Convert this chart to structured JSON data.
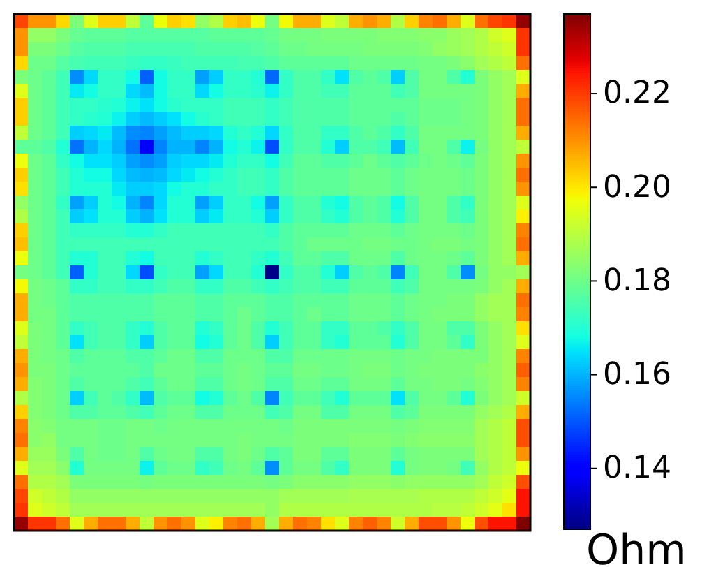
{
  "chart_data": {
    "type": "heatmap",
    "clabel": "Ohm",
    "clim": [
      0.127,
      0.237
    ],
    "cticks": [
      0.14,
      0.16,
      0.18,
      {
        "value": 0.2,
        "label": "0.20"
      },
      0.22
    ],
    "categories": [
      null,
      null,
      null,
      null,
      null,
      null,
      null,
      null,
      null,
      null,
      null,
      null,
      null,
      null,
      null,
      null,
      null,
      null,
      null,
      null,
      null,
      null,
      null,
      null,
      null,
      null,
      null,
      null,
      null,
      null,
      null,
      null,
      null,
      null,
      null,
      null,
      null
    ],
    "y_categories": [
      null,
      null,
      null,
      null,
      null,
      null,
      null,
      null,
      null,
      null,
      null,
      null,
      null,
      null,
      null,
      null,
      null,
      null,
      null,
      null,
      null,
      null,
      null,
      null,
      null,
      null,
      null,
      null,
      null,
      null,
      null,
      null,
      null,
      null,
      null,
      null,
      null
    ],
    "cells": [
      [
        0.219,
        0.21,
        0.21,
        0.202,
        0.182,
        0.195,
        0.203,
        0.203,
        0.191,
        0.178,
        0.197,
        0.203,
        0.201,
        0.185,
        0.189,
        0.203,
        0.205,
        0.197,
        0.181,
        0.198,
        0.207,
        0.207,
        0.195,
        0.191,
        0.207,
        0.21,
        0.207,
        0.189,
        0.203,
        0.212,
        0.214,
        0.207,
        0.195,
        0.214,
        0.219,
        0.221,
        0.235
      ],
      [
        0.21,
        0.185,
        0.185,
        0.182,
        0.179,
        0.178,
        0.178,
        0.178,
        0.177,
        0.177,
        0.177,
        0.177,
        0.177,
        0.177,
        0.178,
        0.178,
        0.178,
        0.178,
        0.179,
        0.181,
        0.181,
        0.181,
        0.182,
        0.182,
        0.182,
        0.182,
        0.183,
        0.183,
        0.183,
        0.184,
        0.184,
        0.186,
        0.187,
        0.189,
        0.193,
        0.195,
        0.221
      ],
      [
        0.21,
        0.182,
        0.182,
        0.18,
        0.177,
        0.176,
        0.176,
        0.176,
        0.175,
        0.175,
        0.175,
        0.175,
        0.175,
        0.176,
        0.176,
        0.176,
        0.176,
        0.177,
        0.178,
        0.18,
        0.18,
        0.181,
        0.181,
        0.181,
        0.181,
        0.182,
        0.182,
        0.182,
        0.182,
        0.183,
        0.185,
        0.186,
        0.187,
        0.189,
        0.191,
        0.193,
        0.221
      ],
      [
        0.202,
        0.18,
        0.18,
        0.177,
        0.175,
        0.174,
        0.174,
        0.174,
        0.173,
        0.172,
        0.172,
        0.173,
        0.174,
        0.174,
        0.174,
        0.174,
        0.175,
        0.175,
        0.176,
        0.178,
        0.178,
        0.178,
        0.178,
        0.178,
        0.18,
        0.18,
        0.18,
        0.18,
        0.18,
        0.181,
        0.181,
        0.182,
        0.184,
        0.187,
        0.189,
        0.191,
        0.214
      ],
      [
        0.182,
        0.18,
        0.178,
        0.174,
        0.156,
        0.164,
        0.172,
        0.172,
        0.168,
        0.151,
        0.168,
        0.172,
        0.172,
        0.158,
        0.163,
        0.172,
        0.172,
        0.17,
        0.152,
        0.172,
        0.176,
        0.176,
        0.172,
        0.165,
        0.176,
        0.178,
        0.176,
        0.163,
        0.176,
        0.181,
        0.181,
        0.176,
        0.17,
        0.182,
        0.185,
        0.187,
        0.195
      ],
      [
        0.195,
        0.18,
        0.178,
        0.174,
        0.166,
        0.168,
        0.172,
        0.172,
        0.164,
        0.161,
        0.168,
        0.172,
        0.172,
        0.164,
        0.168,
        0.172,
        0.172,
        0.171,
        0.167,
        0.172,
        0.176,
        0.176,
        0.174,
        0.174,
        0.178,
        0.178,
        0.178,
        0.174,
        0.176,
        0.181,
        0.181,
        0.181,
        0.181,
        0.182,
        0.185,
        0.187,
        0.207
      ],
      [
        0.203,
        0.18,
        0.178,
        0.174,
        0.172,
        0.172,
        0.171,
        0.17,
        0.167,
        0.165,
        0.168,
        0.171,
        0.172,
        0.172,
        0.172,
        0.174,
        0.174,
        0.174,
        0.172,
        0.174,
        0.176,
        0.176,
        0.176,
        0.176,
        0.178,
        0.178,
        0.178,
        0.178,
        0.178,
        0.18,
        0.18,
        0.18,
        0.181,
        0.182,
        0.185,
        0.187,
        0.214
      ],
      [
        0.203,
        0.18,
        0.178,
        0.174,
        0.172,
        0.171,
        0.17,
        0.167,
        0.163,
        0.161,
        0.163,
        0.165,
        0.168,
        0.171,
        0.172,
        0.174,
        0.174,
        0.174,
        0.172,
        0.174,
        0.176,
        0.176,
        0.176,
        0.176,
        0.178,
        0.178,
        0.178,
        0.176,
        0.178,
        0.18,
        0.18,
        0.18,
        0.181,
        0.182,
        0.185,
        0.187,
        0.214
      ],
      [
        0.191,
        0.18,
        0.178,
        0.174,
        0.163,
        0.164,
        0.166,
        0.161,
        0.156,
        0.155,
        0.158,
        0.161,
        0.163,
        0.163,
        0.164,
        0.17,
        0.172,
        0.17,
        0.164,
        0.172,
        0.176,
        0.176,
        0.172,
        0.172,
        0.176,
        0.178,
        0.176,
        0.172,
        0.176,
        0.181,
        0.181,
        0.181,
        0.181,
        0.182,
        0.185,
        0.187,
        0.207
      ],
      [
        0.178,
        0.178,
        0.176,
        0.17,
        0.153,
        0.16,
        0.164,
        0.16,
        0.153,
        0.14,
        0.155,
        0.16,
        0.16,
        0.155,
        0.16,
        0.168,
        0.17,
        0.167,
        0.149,
        0.172,
        0.176,
        0.176,
        0.17,
        0.163,
        0.176,
        0.176,
        0.174,
        0.161,
        0.174,
        0.181,
        0.181,
        0.176,
        0.167,
        0.181,
        0.185,
        0.187,
        0.191
      ],
      [
        0.197,
        0.18,
        0.178,
        0.172,
        0.168,
        0.165,
        0.165,
        0.163,
        0.158,
        0.156,
        0.158,
        0.163,
        0.164,
        0.164,
        0.166,
        0.17,
        0.172,
        0.172,
        0.168,
        0.174,
        0.178,
        0.178,
        0.176,
        0.176,
        0.178,
        0.18,
        0.178,
        0.176,
        0.178,
        0.18,
        0.181,
        0.18,
        0.178,
        0.182,
        0.185,
        0.187,
        0.21
      ],
      [
        0.203,
        0.18,
        0.178,
        0.174,
        0.17,
        0.168,
        0.168,
        0.164,
        0.161,
        0.16,
        0.161,
        0.164,
        0.166,
        0.168,
        0.17,
        0.172,
        0.174,
        0.174,
        0.172,
        0.176,
        0.178,
        0.178,
        0.178,
        0.178,
        0.18,
        0.18,
        0.18,
        0.178,
        0.18,
        0.181,
        0.181,
        0.181,
        0.18,
        0.182,
        0.185,
        0.187,
        0.214
      ],
      [
        0.201,
        0.18,
        0.178,
        0.174,
        0.17,
        0.17,
        0.17,
        0.166,
        0.163,
        0.163,
        0.164,
        0.168,
        0.17,
        0.17,
        0.172,
        0.172,
        0.174,
        0.174,
        0.172,
        0.176,
        0.178,
        0.178,
        0.178,
        0.178,
        0.18,
        0.18,
        0.18,
        0.178,
        0.18,
        0.181,
        0.181,
        0.181,
        0.18,
        0.182,
        0.185,
        0.187,
        0.21
      ],
      [
        0.185,
        0.18,
        0.178,
        0.172,
        0.158,
        0.163,
        0.17,
        0.168,
        0.16,
        0.155,
        0.164,
        0.17,
        0.17,
        0.158,
        0.163,
        0.172,
        0.172,
        0.168,
        0.158,
        0.172,
        0.176,
        0.176,
        0.17,
        0.168,
        0.176,
        0.178,
        0.176,
        0.168,
        0.176,
        0.181,
        0.181,
        0.176,
        0.172,
        0.182,
        0.185,
        0.187,
        0.195
      ],
      [
        0.189,
        0.18,
        0.178,
        0.174,
        0.163,
        0.165,
        0.17,
        0.17,
        0.163,
        0.16,
        0.165,
        0.17,
        0.17,
        0.163,
        0.166,
        0.172,
        0.172,
        0.17,
        0.163,
        0.172,
        0.176,
        0.176,
        0.172,
        0.17,
        0.176,
        0.178,
        0.176,
        0.17,
        0.176,
        0.181,
        0.181,
        0.176,
        0.174,
        0.182,
        0.185,
        0.187,
        0.199
      ],
      [
        0.203,
        0.18,
        0.178,
        0.174,
        0.172,
        0.172,
        0.172,
        0.172,
        0.17,
        0.17,
        0.172,
        0.174,
        0.174,
        0.174,
        0.174,
        0.174,
        0.174,
        0.174,
        0.172,
        0.176,
        0.178,
        0.178,
        0.178,
        0.178,
        0.18,
        0.18,
        0.18,
        0.178,
        0.18,
        0.181,
        0.181,
        0.181,
        0.18,
        0.182,
        0.185,
        0.187,
        0.212
      ],
      [
        0.205,
        0.18,
        0.178,
        0.174,
        0.174,
        0.174,
        0.174,
        0.174,
        0.174,
        0.174,
        0.174,
        0.174,
        0.174,
        0.174,
        0.174,
        0.174,
        0.174,
        0.174,
        0.174,
        0.176,
        0.178,
        0.18,
        0.18,
        0.18,
        0.18,
        0.181,
        0.181,
        0.18,
        0.18,
        0.181,
        0.182,
        0.182,
        0.181,
        0.182,
        0.185,
        0.187,
        0.214
      ],
      [
        0.197,
        0.18,
        0.178,
        0.174,
        0.17,
        0.17,
        0.174,
        0.174,
        0.17,
        0.168,
        0.174,
        0.174,
        0.174,
        0.17,
        0.172,
        0.174,
        0.174,
        0.172,
        0.17,
        0.174,
        0.178,
        0.178,
        0.176,
        0.176,
        0.18,
        0.18,
        0.18,
        0.176,
        0.18,
        0.181,
        0.181,
        0.18,
        0.178,
        0.182,
        0.185,
        0.187,
        0.207
      ],
      [
        0.181,
        0.18,
        0.178,
        0.174,
        0.151,
        0.17,
        0.174,
        0.174,
        0.164,
        0.149,
        0.172,
        0.174,
        0.174,
        0.158,
        0.164,
        0.174,
        0.174,
        0.17,
        0.128,
        0.172,
        0.176,
        0.176,
        0.17,
        0.163,
        0.176,
        0.178,
        0.176,
        0.155,
        0.174,
        0.181,
        0.181,
        0.176,
        0.156,
        0.181,
        0.185,
        0.185,
        0.187
      ],
      [
        0.198,
        0.181,
        0.18,
        0.178,
        0.172,
        0.172,
        0.174,
        0.174,
        0.172,
        0.172,
        0.174,
        0.176,
        0.176,
        0.172,
        0.172,
        0.176,
        0.176,
        0.174,
        0.172,
        0.174,
        0.176,
        0.176,
        0.174,
        0.174,
        0.178,
        0.178,
        0.178,
        0.174,
        0.176,
        0.181,
        0.181,
        0.181,
        0.181,
        0.182,
        0.185,
        0.187,
        0.207
      ],
      [
        0.207,
        0.181,
        0.18,
        0.178,
        0.176,
        0.176,
        0.176,
        0.176,
        0.176,
        0.176,
        0.178,
        0.178,
        0.178,
        0.176,
        0.176,
        0.178,
        0.178,
        0.178,
        0.176,
        0.176,
        0.178,
        0.178,
        0.178,
        0.178,
        0.18,
        0.18,
        0.18,
        0.178,
        0.18,
        0.181,
        0.181,
        0.182,
        0.182,
        0.185,
        0.187,
        0.187,
        0.214
      ],
      [
        0.207,
        0.181,
        0.181,
        0.178,
        0.176,
        0.176,
        0.176,
        0.176,
        0.176,
        0.176,
        0.178,
        0.178,
        0.178,
        0.176,
        0.176,
        0.178,
        0.18,
        0.178,
        0.176,
        0.176,
        0.178,
        0.18,
        0.178,
        0.178,
        0.18,
        0.18,
        0.18,
        0.178,
        0.18,
        0.181,
        0.182,
        0.182,
        0.182,
        0.185,
        0.187,
        0.187,
        0.212
      ],
      [
        0.195,
        0.182,
        0.181,
        0.178,
        0.172,
        0.174,
        0.176,
        0.176,
        0.172,
        0.17,
        0.176,
        0.178,
        0.178,
        0.17,
        0.172,
        0.178,
        0.18,
        0.176,
        0.17,
        0.174,
        0.178,
        0.178,
        0.172,
        0.172,
        0.178,
        0.178,
        0.176,
        0.172,
        0.176,
        0.181,
        0.181,
        0.176,
        0.176,
        0.182,
        0.185,
        0.187,
        0.201
      ],
      [
        0.191,
        0.182,
        0.181,
        0.178,
        0.165,
        0.174,
        0.176,
        0.176,
        0.172,
        0.163,
        0.176,
        0.178,
        0.178,
        0.168,
        0.17,
        0.178,
        0.18,
        0.176,
        0.163,
        0.174,
        0.178,
        0.178,
        0.172,
        0.17,
        0.178,
        0.178,
        0.178,
        0.17,
        0.176,
        0.181,
        0.181,
        0.178,
        0.172,
        0.182,
        0.185,
        0.187,
        0.195
      ],
      [
        0.207,
        0.182,
        0.181,
        0.18,
        0.176,
        0.178,
        0.178,
        0.178,
        0.176,
        0.176,
        0.178,
        0.18,
        0.18,
        0.176,
        0.176,
        0.18,
        0.18,
        0.18,
        0.176,
        0.176,
        0.18,
        0.18,
        0.18,
        0.18,
        0.181,
        0.181,
        0.181,
        0.18,
        0.181,
        0.181,
        0.182,
        0.182,
        0.182,
        0.182,
        0.185,
        0.187,
        0.212
      ],
      [
        0.21,
        0.182,
        0.182,
        0.18,
        0.178,
        0.178,
        0.178,
        0.178,
        0.178,
        0.176,
        0.18,
        0.18,
        0.18,
        0.178,
        0.178,
        0.18,
        0.181,
        0.18,
        0.178,
        0.178,
        0.181,
        0.181,
        0.18,
        0.18,
        0.181,
        0.182,
        0.182,
        0.18,
        0.181,
        0.182,
        0.182,
        0.182,
        0.182,
        0.184,
        0.185,
        0.187,
        0.216
      ],
      [
        0.207,
        0.183,
        0.182,
        0.18,
        0.176,
        0.178,
        0.178,
        0.178,
        0.176,
        0.174,
        0.178,
        0.18,
        0.18,
        0.176,
        0.176,
        0.18,
        0.181,
        0.18,
        0.176,
        0.176,
        0.18,
        0.18,
        0.178,
        0.178,
        0.181,
        0.181,
        0.181,
        0.178,
        0.181,
        0.181,
        0.182,
        0.182,
        0.181,
        0.183,
        0.185,
        0.187,
        0.212
      ],
      [
        0.189,
        0.183,
        0.182,
        0.18,
        0.163,
        0.174,
        0.178,
        0.176,
        0.172,
        0.161,
        0.176,
        0.178,
        0.178,
        0.168,
        0.17,
        0.178,
        0.18,
        0.176,
        0.155,
        0.174,
        0.178,
        0.178,
        0.174,
        0.17,
        0.178,
        0.178,
        0.178,
        0.165,
        0.176,
        0.181,
        0.181,
        0.178,
        0.17,
        0.182,
        0.185,
        0.187,
        0.193
      ],
      [
        0.203,
        0.183,
        0.182,
        0.18,
        0.176,
        0.176,
        0.178,
        0.178,
        0.176,
        0.174,
        0.178,
        0.18,
        0.18,
        0.176,
        0.176,
        0.18,
        0.18,
        0.18,
        0.174,
        0.176,
        0.181,
        0.181,
        0.176,
        0.176,
        0.181,
        0.181,
        0.181,
        0.176,
        0.178,
        0.182,
        0.182,
        0.182,
        0.182,
        0.185,
        0.187,
        0.189,
        0.207
      ],
      [
        0.212,
        0.184,
        0.183,
        0.181,
        0.181,
        0.181,
        0.18,
        0.18,
        0.181,
        0.181,
        0.18,
        0.181,
        0.181,
        0.181,
        0.181,
        0.181,
        0.181,
        0.181,
        0.181,
        0.18,
        0.182,
        0.182,
        0.182,
        0.182,
        0.182,
        0.182,
        0.182,
        0.181,
        0.182,
        0.183,
        0.183,
        0.183,
        0.183,
        0.187,
        0.189,
        0.191,
        0.218
      ],
      [
        0.214,
        0.184,
        0.185,
        0.181,
        0.181,
        0.181,
        0.18,
        0.18,
        0.181,
        0.181,
        0.181,
        0.181,
        0.181,
        0.181,
        0.181,
        0.181,
        0.182,
        0.181,
        0.181,
        0.181,
        0.182,
        0.182,
        0.182,
        0.182,
        0.183,
        0.183,
        0.183,
        0.182,
        0.183,
        0.184,
        0.184,
        0.184,
        0.184,
        0.187,
        0.189,
        0.191,
        0.218
      ],
      [
        0.207,
        0.186,
        0.186,
        0.182,
        0.176,
        0.181,
        0.18,
        0.18,
        0.181,
        0.176,
        0.18,
        0.181,
        0.181,
        0.176,
        0.176,
        0.181,
        0.182,
        0.18,
        0.176,
        0.178,
        0.182,
        0.182,
        0.178,
        0.178,
        0.182,
        0.182,
        0.182,
        0.178,
        0.181,
        0.182,
        0.182,
        0.182,
        0.182,
        0.187,
        0.189,
        0.191,
        0.21
      ],
      [
        0.195,
        0.187,
        0.187,
        0.184,
        0.17,
        0.181,
        0.181,
        0.181,
        0.181,
        0.167,
        0.178,
        0.18,
        0.18,
        0.172,
        0.174,
        0.18,
        0.181,
        0.178,
        0.156,
        0.178,
        0.181,
        0.181,
        0.176,
        0.172,
        0.182,
        0.182,
        0.182,
        0.17,
        0.181,
        0.182,
        0.182,
        0.181,
        0.174,
        0.185,
        0.189,
        0.191,
        0.197
      ],
      [
        0.214,
        0.189,
        0.189,
        0.187,
        0.182,
        0.182,
        0.182,
        0.182,
        0.182,
        0.181,
        0.182,
        0.182,
        0.182,
        0.182,
        0.182,
        0.182,
        0.182,
        0.182,
        0.181,
        0.182,
        0.184,
        0.184,
        0.184,
        0.184,
        0.185,
        0.185,
        0.185,
        0.184,
        0.185,
        0.185,
        0.185,
        0.185,
        0.185,
        0.187,
        0.191,
        0.193,
        0.218
      ],
      [
        0.219,
        0.193,
        0.191,
        0.189,
        0.185,
        0.185,
        0.185,
        0.185,
        0.185,
        0.185,
        0.185,
        0.185,
        0.185,
        0.185,
        0.185,
        0.185,
        0.185,
        0.185,
        0.185,
        0.187,
        0.187,
        0.187,
        0.187,
        0.187,
        0.188,
        0.188,
        0.188,
        0.188,
        0.188,
        0.189,
        0.189,
        0.189,
        0.189,
        0.191,
        0.193,
        0.196,
        0.225
      ],
      [
        0.221,
        0.195,
        0.193,
        0.191,
        0.187,
        0.187,
        0.187,
        0.187,
        0.187,
        0.187,
        0.187,
        0.187,
        0.187,
        0.187,
        0.187,
        0.187,
        0.187,
        0.187,
        0.185,
        0.189,
        0.189,
        0.189,
        0.189,
        0.189,
        0.189,
        0.189,
        0.189,
        0.189,
        0.189,
        0.189,
        0.19,
        0.19,
        0.191,
        0.193,
        0.196,
        0.201,
        0.225
      ],
      [
        0.235,
        0.221,
        0.221,
        0.214,
        0.195,
        0.207,
        0.214,
        0.214,
        0.207,
        0.191,
        0.21,
        0.214,
        0.21,
        0.195,
        0.199,
        0.212,
        0.214,
        0.207,
        0.187,
        0.207,
        0.214,
        0.212,
        0.201,
        0.195,
        0.212,
        0.216,
        0.212,
        0.193,
        0.207,
        0.218,
        0.218,
        0.21,
        0.197,
        0.218,
        0.225,
        0.225,
        0.237
      ]
    ]
  }
}
